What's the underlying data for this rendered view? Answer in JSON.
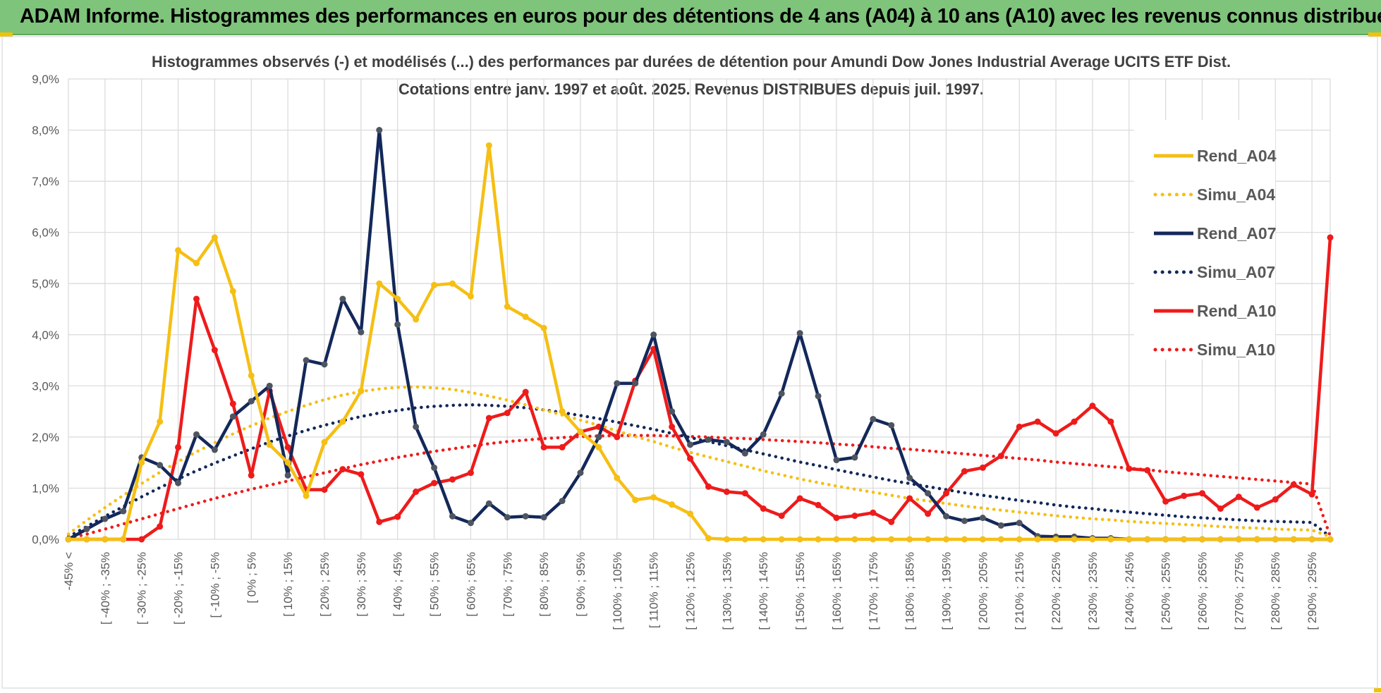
{
  "banner": {
    "title": "ADAM Informe. Histogrammes des performances en euros pour des détentions de 4 ans (A04) à 10 ans (A10) avec les revenus connus distribués"
  },
  "colors": {
    "banner_bg": "#7ec47b",
    "grid": "#d9d9d9",
    "Rend_A04": "#f5bf14",
    "Rend_A07": "#13285a",
    "Rend_A10": "#ee1b1b",
    "marker_A07": "#4e5560"
  },
  "chart_data": {
    "type": "line",
    "title": "Histogrammes observés (-) et modélisés (...) des performances par durées de détention pour Amundi Dow Jones Industrial Average UCITS ETF Dist.",
    "subtitle": "Cotations entre janv. 1997 et août. 2025. Revenus DISTRIBUES depuis juil. 1997.",
    "xlabel": "",
    "ylabel": "",
    "ylim": [
      0,
      9
    ],
    "y_ticks": [
      "0,0%",
      "1,0%",
      "2,0%",
      "3,0%",
      "4,0%",
      "5,0%",
      "6,0%",
      "7,0%",
      "8,0%",
      "9,0%"
    ],
    "grid": true,
    "legend_position": "top-right",
    "x_tick_labels": [
      "-45% <",
      "[ -40% ; -35%",
      "[ -30% ; -25%",
      "[ -20% ; -15%",
      "[ -10% ; -5%",
      "[ 0% ; 5%",
      "[ 10% ; 15%",
      "[ 20% ; 25%",
      "[ 30% ; 35%",
      "[ 40% ; 45%",
      "[ 50% ; 55%",
      "[ 60% ; 65%",
      "[ 70% ; 75%",
      "[ 80% ; 85%",
      "[ 90% ; 95%",
      "[ 100% ; 105%",
      "[ 110% ; 115%",
      "[ 120% ; 125%",
      "[ 130% ; 135%",
      "[ 140% ; 145%",
      "[ 150% ; 155%",
      "[ 160% ; 165%",
      "[ 170% ; 175%",
      "[ 180% ; 185%",
      "[ 190% ; 195%",
      "[ 200% ; 205%",
      "[ 210% ; 215%",
      "[ 220% ; 225%",
      "[ 230% ; 235%",
      "[ 240% ; 245%",
      "[ 250% ; 255%",
      "[ 260% ; 265%",
      "[ 270% ; 275%",
      "[ 280% ; 285%",
      "[ 290% ; 295%"
    ],
    "series": [
      {
        "name": "Rend_A04",
        "style": "solid",
        "markers": true,
        "values": [
          0,
          0,
          0,
          0,
          1.5,
          2.3,
          5.65,
          5.4,
          5.9,
          4.85,
          3.2,
          1.85,
          1.5,
          0.85,
          1.9,
          2.3,
          2.9,
          5.0,
          4.7,
          4.3,
          4.97,
          5.0,
          4.75,
          7.7,
          4.55,
          4.35,
          4.13,
          2.5,
          2.1,
          1.8,
          1.2,
          0.77,
          0.82,
          0.68,
          0.5,
          0.02,
          0,
          0,
          0,
          0,
          0,
          0,
          0,
          0,
          0,
          0,
          0,
          0,
          0,
          0,
          0,
          0,
          0,
          0,
          0,
          0,
          0,
          0,
          0,
          0,
          0,
          0,
          0,
          0,
          0,
          0,
          0,
          0,
          0,
          0
        ]
      },
      {
        "name": "Simu_A04",
        "style": "dotted",
        "markers": false,
        "values": [
          0.1,
          0.37,
          0.62,
          0.86,
          1.09,
          1.31,
          1.52,
          1.71,
          1.89,
          2.06,
          2.22,
          2.37,
          2.5,
          2.62,
          2.73,
          2.82,
          2.89,
          2.94,
          2.97,
          2.98,
          2.96,
          2.93,
          2.87,
          2.8,
          2.72,
          2.63,
          2.53,
          2.43,
          2.33,
          2.23,
          2.12,
          2.01,
          1.91,
          1.8,
          1.7,
          1.61,
          1.52,
          1.43,
          1.34,
          1.26,
          1.18,
          1.11,
          1.04,
          0.98,
          0.92,
          0.86,
          0.8,
          0.75,
          0.7,
          0.65,
          0.61,
          0.57,
          0.53,
          0.5,
          0.46,
          0.43,
          0.4,
          0.38,
          0.35,
          0.33,
          0.31,
          0.29,
          0.27,
          0.25,
          0.23,
          0.22,
          0.2,
          0.19,
          0.18,
          0.05
        ]
      },
      {
        "name": "Rend_A07",
        "style": "solid",
        "markers": true,
        "values": [
          0,
          0.2,
          0.4,
          0.55,
          1.6,
          1.45,
          1.1,
          2.05,
          1.75,
          2.4,
          2.7,
          3.0,
          1.25,
          3.5,
          3.42,
          4.7,
          4.05,
          8.0,
          4.2,
          2.2,
          1.4,
          0.45,
          0.32,
          0.7,
          0.43,
          0.45,
          0.43,
          0.75,
          1.3,
          2.0,
          3.05,
          3.05,
          4.0,
          2.5,
          1.85,
          1.95,
          1.9,
          1.68,
          2.05,
          2.85,
          4.03,
          2.8,
          1.55,
          1.6,
          2.35,
          2.23,
          1.2,
          0.9,
          0.45,
          0.36,
          0.42,
          0.27,
          0.32,
          0.06,
          0.05,
          0.05,
          0.02,
          0.02,
          0,
          0,
          0,
          0,
          0,
          0,
          0,
          0,
          0,
          0,
          0,
          0
        ]
      },
      {
        "name": "Simu_A07",
        "style": "dotted",
        "markers": false,
        "values": [
          0.05,
          0.25,
          0.45,
          0.64,
          0.83,
          1.01,
          1.18,
          1.34,
          1.49,
          1.63,
          1.77,
          1.9,
          2.02,
          2.13,
          2.23,
          2.32,
          2.4,
          2.47,
          2.52,
          2.57,
          2.6,
          2.62,
          2.63,
          2.62,
          2.6,
          2.57,
          2.53,
          2.48,
          2.42,
          2.36,
          2.29,
          2.22,
          2.15,
          2.07,
          1.99,
          1.91,
          1.83,
          1.75,
          1.67,
          1.59,
          1.51,
          1.44,
          1.36,
          1.29,
          1.22,
          1.15,
          1.09,
          1.03,
          0.97,
          0.91,
          0.86,
          0.81,
          0.76,
          0.72,
          0.67,
          0.63,
          0.6,
          0.56,
          0.53,
          0.5,
          0.47,
          0.44,
          0.42,
          0.4,
          0.38,
          0.36,
          0.35,
          0.34,
          0.33,
          0.05
        ]
      },
      {
        "name": "Rend_A10",
        "style": "solid",
        "markers": true,
        "values": [
          0,
          0,
          0,
          0,
          0,
          0.25,
          1.8,
          4.7,
          3.7,
          2.65,
          1.25,
          2.9,
          1.8,
          0.97,
          0.97,
          1.37,
          1.27,
          0.34,
          0.44,
          0.93,
          1.1,
          1.17,
          1.3,
          2.37,
          2.47,
          2.88,
          1.8,
          1.8,
          2.1,
          2.2,
          2.0,
          3.1,
          3.72,
          2.2,
          1.58,
          1.03,
          0.93,
          0.9,
          0.6,
          0.46,
          0.8,
          0.67,
          0.42,
          0.46,
          0.52,
          0.34,
          0.8,
          0.5,
          0.9,
          1.33,
          1.4,
          1.63,
          2.2,
          2.3,
          2.07,
          2.3,
          2.61,
          2.3,
          1.38,
          1.35,
          0.74,
          0.85,
          0.9,
          0.6,
          0.83,
          0.62,
          0.78,
          1.07,
          0.88,
          5.9
        ]
      },
      {
        "name": "Simu_A10",
        "style": "dotted",
        "markers": false,
        "values": [
          0.02,
          0.1,
          0.2,
          0.3,
          0.4,
          0.5,
          0.6,
          0.7,
          0.8,
          0.89,
          0.98,
          1.06,
          1.14,
          1.22,
          1.3,
          1.38,
          1.46,
          1.53,
          1.6,
          1.66,
          1.72,
          1.77,
          1.82,
          1.87,
          1.91,
          1.94,
          1.97,
          1.99,
          2.01,
          2.02,
          2.03,
          2.03,
          2.03,
          2.02,
          2.01,
          2.0,
          1.98,
          1.97,
          1.95,
          1.93,
          1.91,
          1.89,
          1.86,
          1.84,
          1.81,
          1.78,
          1.76,
          1.73,
          1.7,
          1.67,
          1.64,
          1.61,
          1.58,
          1.55,
          1.51,
          1.48,
          1.45,
          1.42,
          1.39,
          1.36,
          1.32,
          1.29,
          1.26,
          1.23,
          1.2,
          1.17,
          1.14,
          1.11,
          1.08,
          0.06
        ]
      }
    ]
  }
}
